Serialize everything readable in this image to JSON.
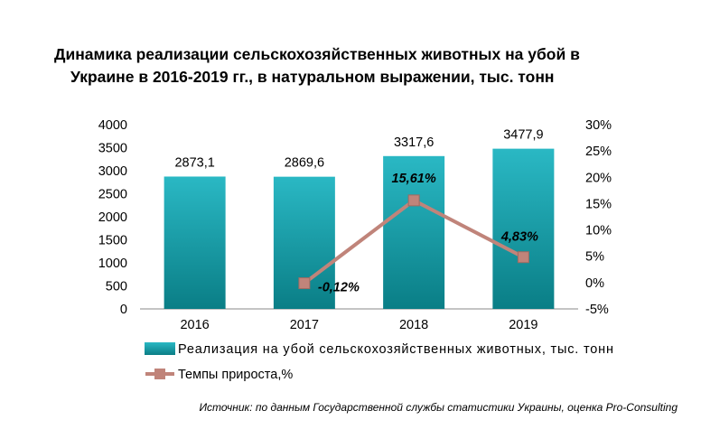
{
  "title_line1": "Динамика реализации сельскохозяйственных животных на убой в",
  "title_line2": "Украине в 2016-2019 гг., в натуральном выражении, тыс. тонн",
  "source": "Источник: по данным Государственной службы статистики Украины, оценка Pro-Consulting",
  "colors": {
    "bar_top": "#2ab8c4",
    "bar_bottom": "#0a7e86",
    "line": "#c0847a",
    "marker": "#c0847a"
  },
  "chart_data": {
    "type": "bar",
    "categories": [
      "2016",
      "2017",
      "2018",
      "2019"
    ],
    "series": [
      {
        "name": "Реализация на убой сельскохозяйственных животных, тыс. тонн",
        "type": "bar",
        "axis": "left",
        "values": [
          2873.1,
          2869.6,
          3317.6,
          3477.9
        ],
        "labels": [
          "2873,1",
          "2869,6",
          "3317,6",
          "3477,9"
        ]
      },
      {
        "name": "Темпы прироста,%",
        "type": "line",
        "axis": "right",
        "values": [
          null,
          -0.12,
          15.61,
          4.83
        ],
        "labels": [
          "",
          "-0,12%",
          "15,61%",
          "4,83%"
        ]
      }
    ],
    "y_left": {
      "min": 0,
      "max": 4000,
      "ticks": [
        0,
        500,
        1000,
        1500,
        2000,
        2500,
        3000,
        3500,
        4000
      ]
    },
    "y_right": {
      "min": -5,
      "max": 30,
      "ticks": [
        -5,
        0,
        5,
        10,
        15,
        20,
        25,
        30
      ],
      "tick_labels": [
        "-5%",
        "0%",
        "5%",
        "10%",
        "15%",
        "20%",
        "25%",
        "30%"
      ]
    },
    "legend_position": "bottom",
    "grid": false
  }
}
